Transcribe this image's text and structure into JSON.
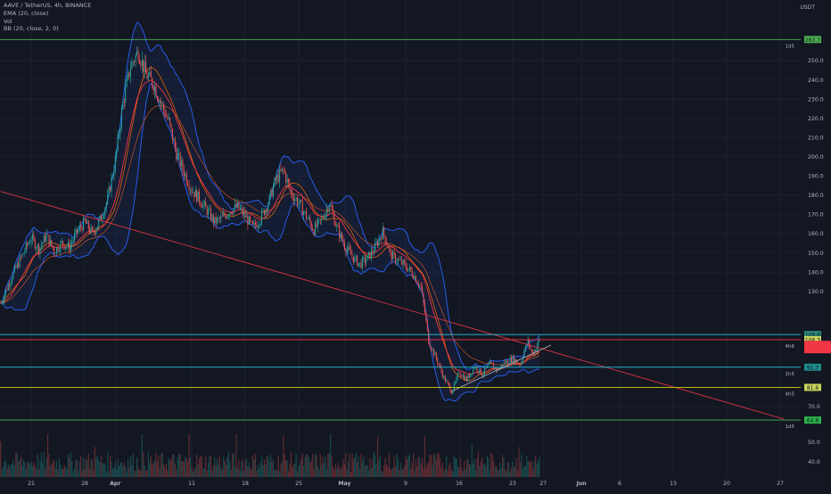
{
  "header": {
    "symbol_line": "AAVE / TetherUS, 4h, BINANCE",
    "indicators": [
      "EMA (20, close)",
      "Vol",
      "BB (20, close, 2, 0)"
    ],
    "price_unit": "USDT"
  },
  "chart_data": {
    "type": "candlestick",
    "y_axis": {
      "ticks": [
        250.0,
        240.0,
        230.0,
        220.0,
        210.0,
        200.0,
        190.0,
        180.0,
        170.0,
        160.0,
        150.0,
        140.0,
        130.0,
        70.0
      ],
      "range": [
        64,
        262
      ]
    },
    "volume_axis": {
      "ticks": [
        50.0,
        40.0
      ]
    },
    "x_axis": {
      "ticks": [
        {
          "label": "21",
          "day": 0,
          "bold": false
        },
        {
          "label": "28",
          "day": 7,
          "bold": false
        },
        {
          "label": "Apr",
          "day": 11,
          "bold": true
        },
        {
          "label": "11",
          "day": 21,
          "bold": false
        },
        {
          "label": "18",
          "day": 28,
          "bold": false
        },
        {
          "label": "25",
          "day": 35,
          "bold": false
        },
        {
          "label": "May",
          "day": 41,
          "bold": true
        },
        {
          "label": "9",
          "day": 49,
          "bold": false
        },
        {
          "label": "16",
          "day": 56,
          "bold": false
        },
        {
          "label": "23",
          "day": 63,
          "bold": false
        },
        {
          "label": "27",
          "day": 67,
          "bold": false
        },
        {
          "label": "Jun",
          "day": 72,
          "bold": true
        },
        {
          "label": "6",
          "day": 77,
          "bold": false
        },
        {
          "label": "13",
          "day": 84,
          "bold": false
        },
        {
          "label": "20",
          "day": 91,
          "bold": false
        },
        {
          "label": "27",
          "day": 98,
          "bold": false
        }
      ],
      "range": [
        -4,
        102
      ]
    },
    "price_path": [
      [
        -4,
        124
      ],
      [
        -2.5,
        138
      ],
      [
        -1,
        150
      ],
      [
        0,
        158
      ],
      [
        1,
        152
      ],
      [
        2,
        159
      ],
      [
        3,
        151
      ],
      [
        4,
        155
      ],
      [
        5,
        153
      ],
      [
        6,
        161
      ],
      [
        7,
        166
      ],
      [
        8,
        160
      ],
      [
        9,
        167
      ],
      [
        10,
        178
      ],
      [
        11,
        198
      ],
      [
        12,
        228
      ],
      [
        13,
        247
      ],
      [
        14,
        255
      ],
      [
        15,
        243
      ],
      [
        16,
        238
      ],
      [
        17,
        228
      ],
      [
        18,
        218
      ],
      [
        19,
        202
      ],
      [
        20,
        192
      ],
      [
        21,
        183
      ],
      [
        22,
        178
      ],
      [
        23,
        172
      ],
      [
        24,
        166
      ],
      [
        25,
        168
      ],
      [
        26,
        172
      ],
      [
        27,
        174
      ],
      [
        28,
        169
      ],
      [
        29,
        163
      ],
      [
        30,
        168
      ],
      [
        31,
        176
      ],
      [
        32,
        188
      ],
      [
        33,
        193
      ],
      [
        34,
        181
      ],
      [
        35,
        176
      ],
      [
        36,
        169
      ],
      [
        37,
        162
      ],
      [
        38,
        167
      ],
      [
        39,
        176
      ],
      [
        40,
        163
      ],
      [
        41,
        154
      ],
      [
        42,
        148
      ],
      [
        43,
        144
      ],
      [
        44,
        147
      ],
      [
        45,
        153
      ],
      [
        46,
        161
      ],
      [
        46.5,
        156
      ],
      [
        47,
        149
      ],
      [
        48,
        146
      ],
      [
        49,
        143
      ],
      [
        50,
        139
      ],
      [
        51,
        132
      ],
      [
        51.5,
        119
      ],
      [
        52,
        104
      ],
      [
        53,
        95
      ],
      [
        54,
        85
      ],
      [
        55,
        78
      ],
      [
        55.5,
        82
      ],
      [
        56,
        88
      ],
      [
        57,
        84
      ],
      [
        58,
        91
      ],
      [
        59,
        87
      ],
      [
        60,
        92
      ],
      [
        61,
        89
      ],
      [
        62,
        93
      ],
      [
        63,
        95
      ],
      [
        64,
        92
      ],
      [
        64.5,
        99
      ],
      [
        65,
        104
      ],
      [
        65.5,
        98
      ],
      [
        66,
        100
      ],
      [
        66.5,
        105
      ]
    ],
    "horizontal_levels": [
      {
        "price": 261.0,
        "color": "#4caf50",
        "tag": "1d5",
        "box_label": "263.7",
        "box_color": "#4caf50"
      },
      {
        "price": 107.5,
        "color": "#26c6da",
        "tag": "",
        "box_label": "109.6",
        "box_color": "#2e8b7e"
      },
      {
        "price": 104.8,
        "color": "#f23645",
        "tag": "4h6",
        "box_label": "106.3",
        "box_color": "#c9d45a"
      },
      {
        "price": 90.5,
        "color": "#26c6da",
        "tag": "1h5",
        "box_label": "91.7",
        "box_color": "#1e8c8c"
      },
      {
        "price": 80.0,
        "color": "#d4d40a",
        "tag": "4h5",
        "box_label": "81.6",
        "box_color": "#c9d45a"
      },
      {
        "price": 63.0,
        "color": "#4caf50",
        "tag": "1d5",
        "box_label": "64.8",
        "box_color": "#2db34a"
      }
    ],
    "current_price_box": {
      "price": 101.0,
      "color": "#f23645"
    },
    "trendlines": [
      {
        "from": [
          -4,
          182
        ],
        "to": [
          98.5,
          63.5
        ],
        "color": "#f23645"
      },
      {
        "from": [
          55,
          78
        ],
        "to": [
          68,
          102
        ],
        "color": "#b2b5be"
      }
    ]
  }
}
